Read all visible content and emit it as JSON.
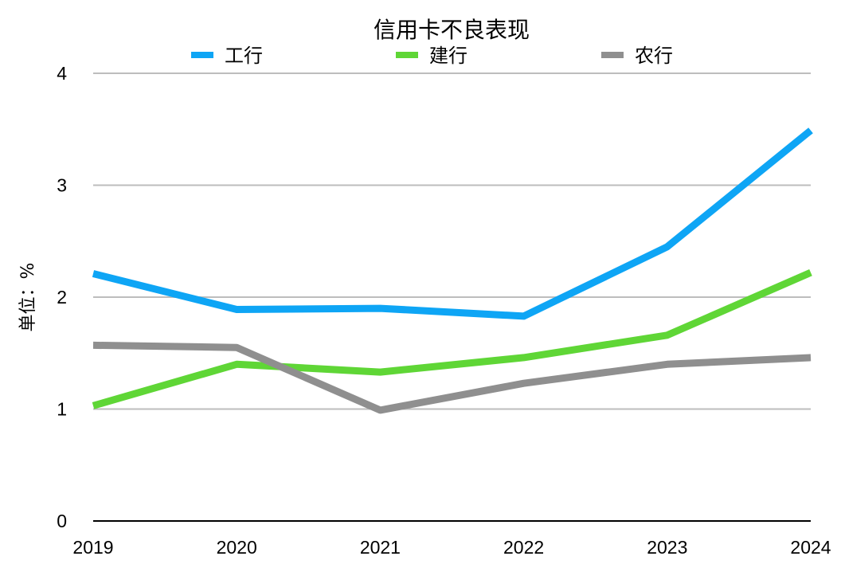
{
  "chart_data": {
    "type": "line",
    "title": "信用卡不良表现",
    "ylabel": "单位：%",
    "xlabel": "",
    "categories": [
      "2019",
      "2020",
      "2021",
      "2022",
      "2023",
      "2024"
    ],
    "ylim": [
      0,
      4
    ],
    "yticks": [
      0,
      1,
      2,
      3,
      4
    ],
    "grid": true,
    "legend_position": "top",
    "series": [
      {
        "name": "工行",
        "color": "#0ea5f5",
        "values": [
          2.21,
          1.89,
          1.9,
          1.83,
          2.45,
          3.49
        ]
      },
      {
        "name": "建行",
        "color": "#5fd636",
        "values": [
          1.03,
          1.4,
          1.33,
          1.46,
          1.66,
          2.22
        ]
      },
      {
        "name": "农行",
        "color": "#8f8f8f",
        "values": [
          1.57,
          1.55,
          0.99,
          1.23,
          1.4,
          1.46
        ]
      }
    ]
  }
}
